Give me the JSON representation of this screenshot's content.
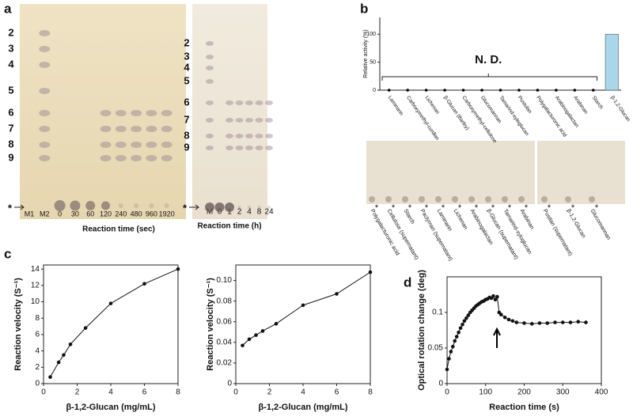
{
  "panel_labels": [
    "a",
    "b",
    "c",
    "d"
  ],
  "tlc_a": {
    "markers": [
      "2",
      "3",
      "4",
      "5",
      "6",
      "7",
      "8",
      "9"
    ],
    "arrow": "*",
    "lanes": [
      "M1",
      "M2",
      "0",
      "30",
      "60",
      "120",
      "240",
      "480",
      "960",
      "1920"
    ],
    "xlabel": "Reaction time (sec)"
  },
  "tlc_a2": {
    "markers": [
      "2",
      "3",
      "4",
      "5",
      "6",
      "7",
      "8",
      "9"
    ],
    "arrow": "*",
    "lanes": [
      "M",
      "0",
      "1",
      "2",
      "4",
      "8",
      "24"
    ],
    "xlabel": "Reaction time (h)"
  },
  "tlc_b": {
    "marker": "*",
    "lanes": [
      "Polygalacturonic acid",
      "Cellulose (supernatant)",
      "Starch",
      "Paclyman (supernatant)",
      "Laminarin",
      "Lichenan",
      "Arabinogalactan",
      "β-Glucan (supernatant)",
      "Tamarind-xyloglucan",
      "Arabinan",
      "Pustlan (supernatant)",
      "β-1,2-Glucan",
      "Glucomannan"
    ]
  },
  "chart_data": [
    {
      "type": "bar",
      "ylabel": "Relative activity (%)",
      "annotation": "N. D.",
      "color": "#a9d6ea",
      "categories": [
        "Laminarin",
        "Carboxymethyl-curdlan",
        "Lichenan",
        "β-Glucan (Barley)",
        "Carboxymethyl-cellulose",
        "Glucomannan",
        "Tamarind-xyloglucan",
        "Pustulan",
        "Polygalacturonic acid",
        "Arabinogalactan",
        "Arabinan",
        "Starch",
        "β-1,2-Glucan"
      ],
      "values": [
        0,
        0,
        0,
        0,
        0,
        0,
        0,
        0,
        0,
        0,
        0,
        0,
        100
      ],
      "ylim": [
        0,
        130
      ],
      "yticks": [
        0,
        50,
        100
      ]
    },
    {
      "type": "line",
      "xlabel": "β-1,2-Glucan (mg/mL)",
      "ylabel": "Reaction velocity (S⁻¹)",
      "color": "#111",
      "x": [
        0.4,
        0.9,
        1.2,
        1.6,
        2.5,
        4,
        6,
        8
      ],
      "values": [
        0.8,
        2.6,
        3.5,
        4.8,
        6.8,
        9.8,
        12.2,
        14.0
      ],
      "xlim": [
        0,
        8
      ],
      "xticks": [
        0,
        2,
        4,
        6,
        8
      ],
      "ylim": [
        0,
        14.5
      ],
      "yticks": [
        0,
        2,
        4,
        6,
        8,
        10,
        12,
        14
      ]
    },
    {
      "type": "line",
      "xlabel": "β-1,2-Glucan (mg/mL)",
      "ylabel": "Reaction velocity (S⁻¹)",
      "color": "#111",
      "x": [
        0.4,
        0.8,
        1.2,
        1.6,
        2.4,
        4,
        6,
        8
      ],
      "values": [
        0.037,
        0.043,
        0.047,
        0.051,
        0.058,
        0.076,
        0.087,
        0.108
      ],
      "xlim": [
        0,
        8
      ],
      "xticks": [
        0,
        2,
        4,
        6,
        8
      ],
      "ylim": [
        0,
        0.115
      ],
      "yticks": [
        0,
        {
          "value": 0.02,
          "label": "0.02"
        },
        {
          "value": 0.04,
          "label": "0.04"
        },
        {
          "value": 0.06,
          "label": "0.06"
        },
        {
          "value": 0.08,
          "label": "0.08"
        },
        {
          "value": 0.1,
          "label": "0.10"
        }
      ]
    },
    {
      "type": "line",
      "xlabel": "Reaction time (s)",
      "ylabel": "Optical rotation change (deg)",
      "color": "#111",
      "x": [
        0,
        5,
        10,
        15,
        20,
        25,
        30,
        35,
        40,
        45,
        50,
        55,
        60,
        65,
        70,
        75,
        80,
        85,
        90,
        95,
        100,
        105,
        110,
        115,
        120,
        125,
        130,
        135,
        140,
        150,
        160,
        170,
        180,
        200,
        220,
        240,
        260,
        280,
        300,
        320,
        340,
        360
      ],
      "values": [
        0.02,
        0.035,
        0.045,
        0.052,
        0.06,
        0.066,
        0.072,
        0.078,
        0.083,
        0.088,
        0.092,
        0.096,
        0.1,
        0.103,
        0.106,
        0.109,
        0.111,
        0.113,
        0.115,
        0.116,
        0.118,
        0.119,
        0.121,
        0.12,
        0.123,
        0.118,
        0.122,
        0.1,
        0.097,
        0.093,
        0.09,
        0.088,
        0.086,
        0.085,
        0.084,
        0.085,
        0.085,
        0.086,
        0.086,
        0.086,
        0.087,
        0.086
      ],
      "xlim": [
        0,
        400
      ],
      "xticks": [
        0,
        100,
        200,
        300,
        400
      ],
      "ylim": [
        0,
        0.15
      ],
      "yticks": [
        0,
        0.05,
        0.1
      ]
    }
  ]
}
